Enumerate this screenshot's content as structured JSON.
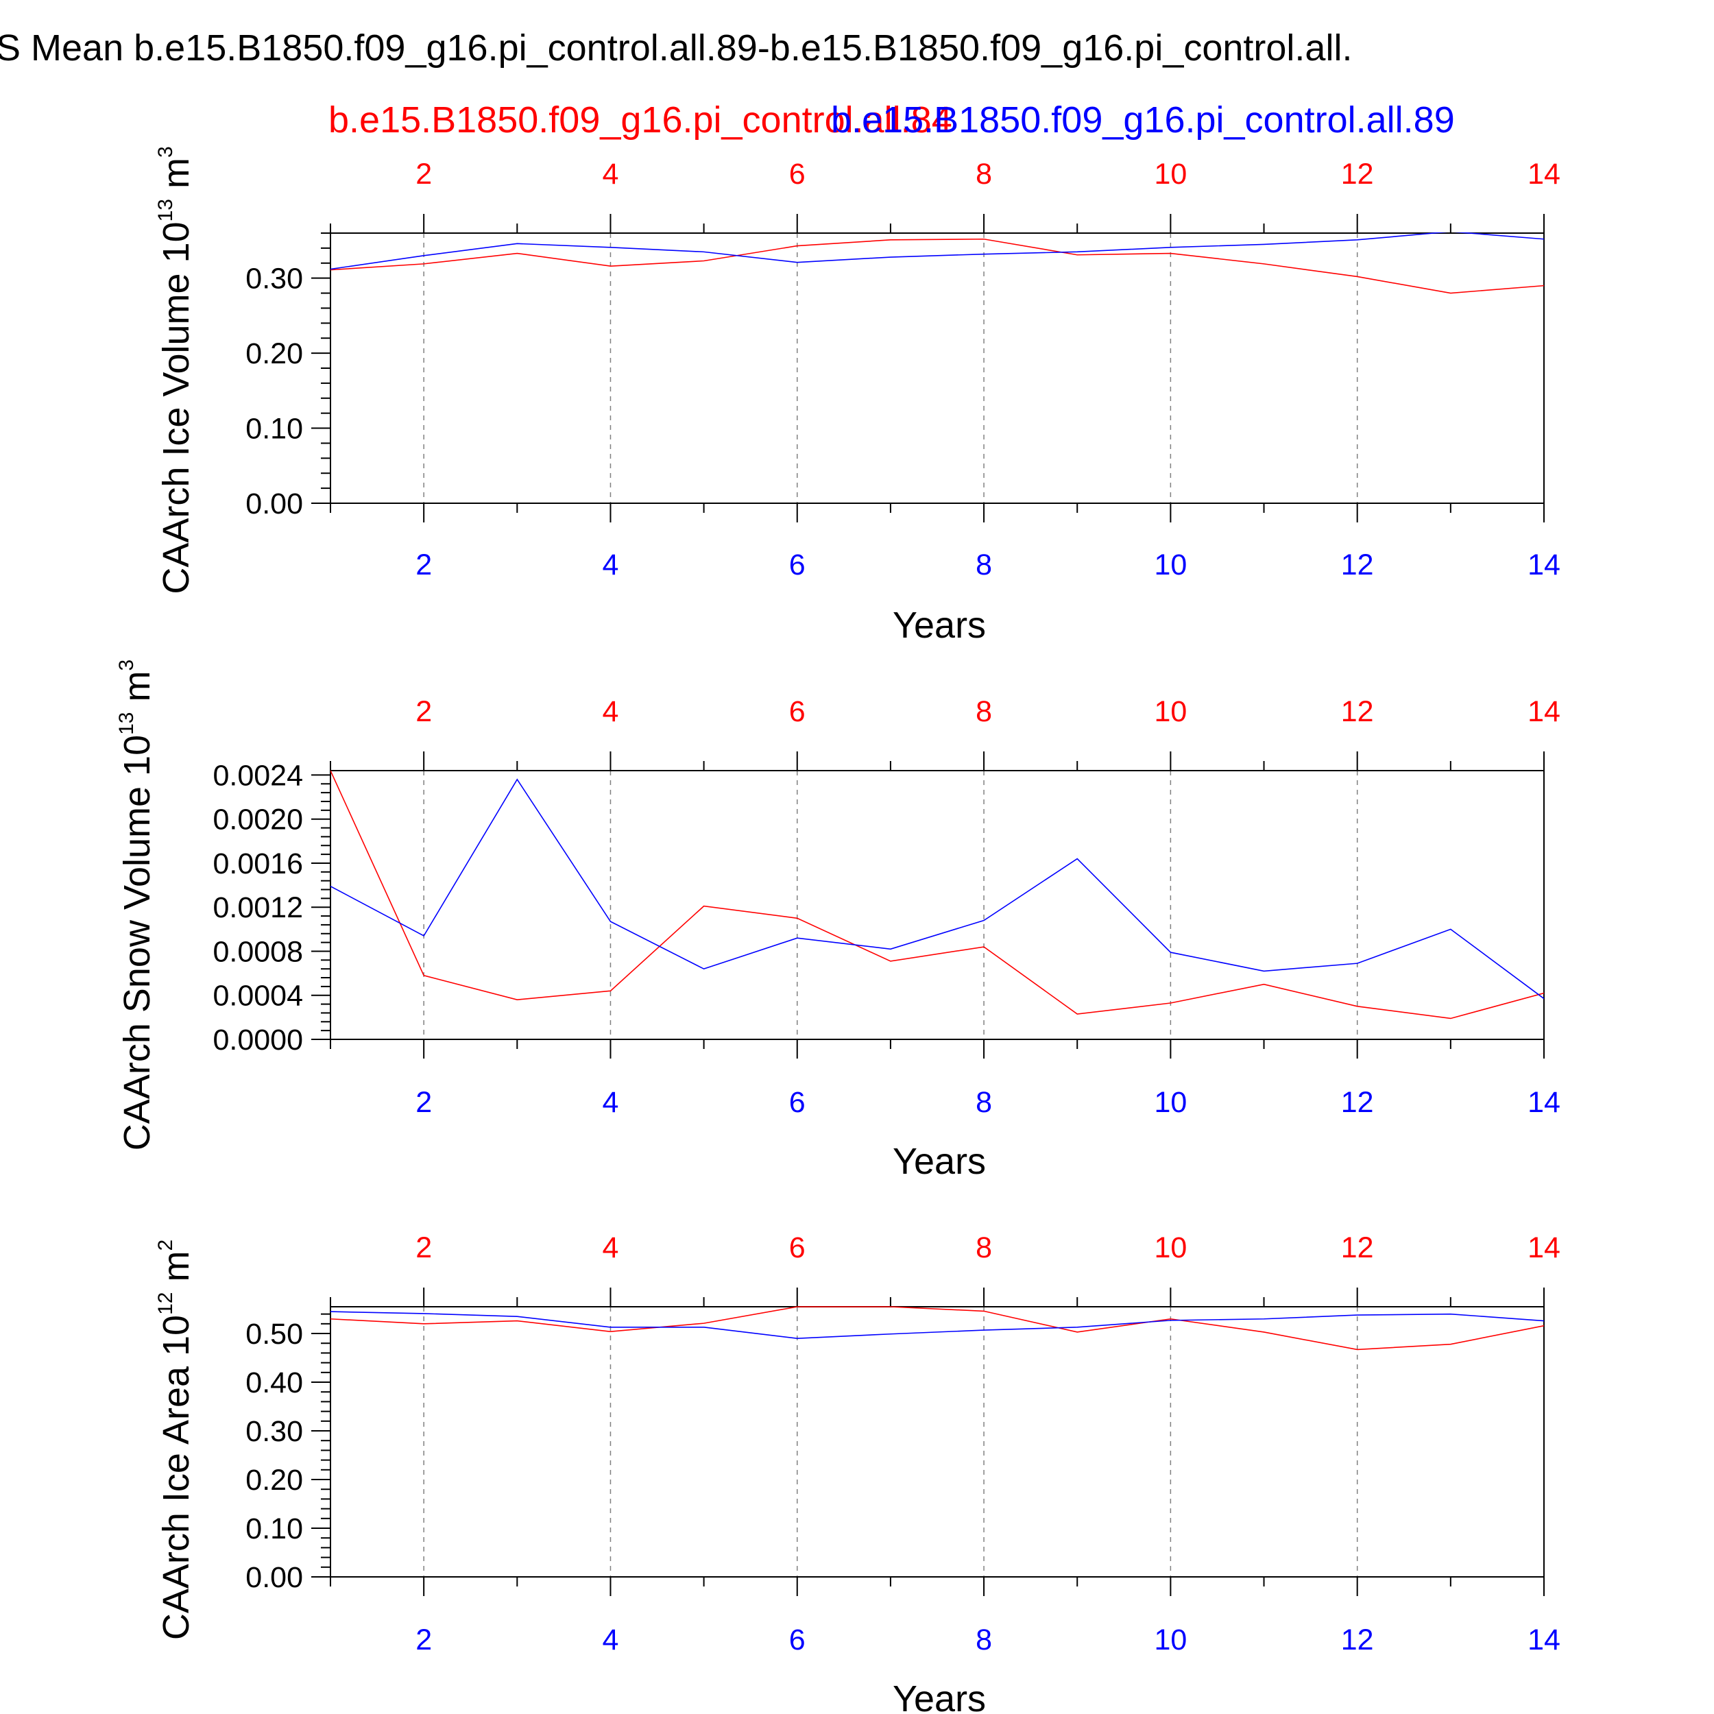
{
  "title": "S Mean b.e15.B1850.f09_g16.pi_control.all.89-b.e15.B1850.f09_g16.pi_control.all.",
  "case_labels": {
    "red": "b.e15.B1850.f09_g16.pi_control.all.84",
    "blue": "b.e15.B1850.f09_g16.pi_control.all.89"
  },
  "colors": {
    "red": "#ff0000",
    "blue": "#0000ff",
    "axis": "#000000",
    "grid": "#808080"
  },
  "chart_data": [
    {
      "type": "line",
      "ylabel": "CAArch Ice Volume",
      "ylabel_unit_base": "10",
      "ylabel_unit_exp": "13",
      "ylabel_unit_tail": "m",
      "ylabel_unit_tail_exp": "3",
      "xlabel": "Years",
      "xlim": [
        1,
        14
      ],
      "ylim": [
        0,
        0.36
      ],
      "xticks": [
        2,
        4,
        6,
        8,
        10,
        12,
        14
      ],
      "xtick_labels": [
        "2",
        "4",
        "6",
        "8",
        "10",
        "12",
        "14"
      ],
      "yticks": [
        0.0,
        0.1,
        0.2,
        0.3
      ],
      "ytick_labels": [
        "0.00",
        "0.10",
        "0.20",
        "0.30"
      ],
      "x": [
        1,
        2,
        3,
        4,
        5,
        6,
        7,
        8,
        9,
        10,
        11,
        12,
        13,
        14
      ],
      "series": [
        {
          "name": "b.e15.B1850.f09_g16.pi_control.all.84",
          "color": "red",
          "values": [
            0.311,
            0.319,
            0.333,
            0.316,
            0.323,
            0.343,
            0.351,
            0.352,
            0.331,
            0.333,
            0.319,
            0.302,
            0.28,
            0.29
          ]
        },
        {
          "name": "b.e15.B1850.f09_g16.pi_control.all.89",
          "color": "blue",
          "values": [
            0.312,
            0.33,
            0.346,
            0.341,
            0.335,
            0.321,
            0.328,
            0.332,
            0.335,
            0.341,
            0.345,
            0.351,
            0.362,
            0.352
          ]
        }
      ]
    },
    {
      "type": "line",
      "ylabel": "CAArch Snow Volume",
      "ylabel_unit_base": "10",
      "ylabel_unit_exp": "13",
      "ylabel_unit_tail": "m",
      "ylabel_unit_tail_exp": "3",
      "xlabel": "Years",
      "xlim": [
        1,
        14
      ],
      "ylim": [
        0,
        0.00244
      ],
      "xticks": [
        2,
        4,
        6,
        8,
        10,
        12,
        14
      ],
      "xtick_labels": [
        "2",
        "4",
        "6",
        "8",
        "10",
        "12",
        "14"
      ],
      "yticks": [
        0.0,
        0.0004,
        0.0008,
        0.0012,
        0.0016,
        0.002,
        0.0024
      ],
      "ytick_labels": [
        "0.0000",
        "0.0004",
        "0.0008",
        "0.0012",
        "0.0016",
        "0.0020",
        "0.0024"
      ],
      "x": [
        1,
        2,
        3,
        4,
        5,
        6,
        7,
        8,
        9,
        10,
        11,
        12,
        13,
        14
      ],
      "series": [
        {
          "name": "b.e15.B1850.f09_g16.pi_control.all.84",
          "color": "red",
          "values": [
            0.00244,
            0.00058,
            0.00036,
            0.00044,
            0.00121,
            0.0011,
            0.00071,
            0.00084,
            0.00023,
            0.00033,
            0.0005,
            0.0003,
            0.00019,
            0.00042
          ]
        },
        {
          "name": "b.e15.B1850.f09_g16.pi_control.all.89",
          "color": "blue",
          "values": [
            0.00139,
            0.00094,
            0.00236,
            0.00107,
            0.00064,
            0.00092,
            0.00082,
            0.00108,
            0.00164,
            0.00079,
            0.00062,
            0.00069,
            0.001,
            0.00037
          ]
        }
      ]
    },
    {
      "type": "line",
      "ylabel": "CAArch Ice Area",
      "ylabel_unit_base": "10",
      "ylabel_unit_exp": "12",
      "ylabel_unit_tail": "m",
      "ylabel_unit_tail_exp": "2",
      "xlabel": "Years",
      "xlim": [
        1,
        14
      ],
      "ylim": [
        0,
        0.555
      ],
      "xticks": [
        2,
        4,
        6,
        8,
        10,
        12,
        14
      ],
      "xtick_labels": [
        "2",
        "4",
        "6",
        "8",
        "10",
        "12",
        "14"
      ],
      "yticks": [
        0.0,
        0.1,
        0.2,
        0.3,
        0.4,
        0.5
      ],
      "ytick_labels": [
        "0.00",
        "0.10",
        "0.20",
        "0.30",
        "0.40",
        "0.50"
      ],
      "x": [
        1,
        2,
        3,
        4,
        5,
        6,
        7,
        8,
        9,
        10,
        11,
        12,
        13,
        14
      ],
      "series": [
        {
          "name": "b.e15.B1850.f09_g16.pi_control.all.84",
          "color": "red",
          "values": [
            0.53,
            0.52,
            0.526,
            0.504,
            0.521,
            0.555,
            0.555,
            0.546,
            0.503,
            0.53,
            0.503,
            0.467,
            0.478,
            0.516
          ]
        },
        {
          "name": "b.e15.B1850.f09_g16.pi_control.all.89",
          "color": "blue",
          "values": [
            0.545,
            0.541,
            0.535,
            0.513,
            0.513,
            0.49,
            0.499,
            0.507,
            0.513,
            0.527,
            0.53,
            0.538,
            0.54,
            0.526
          ]
        }
      ]
    }
  ]
}
